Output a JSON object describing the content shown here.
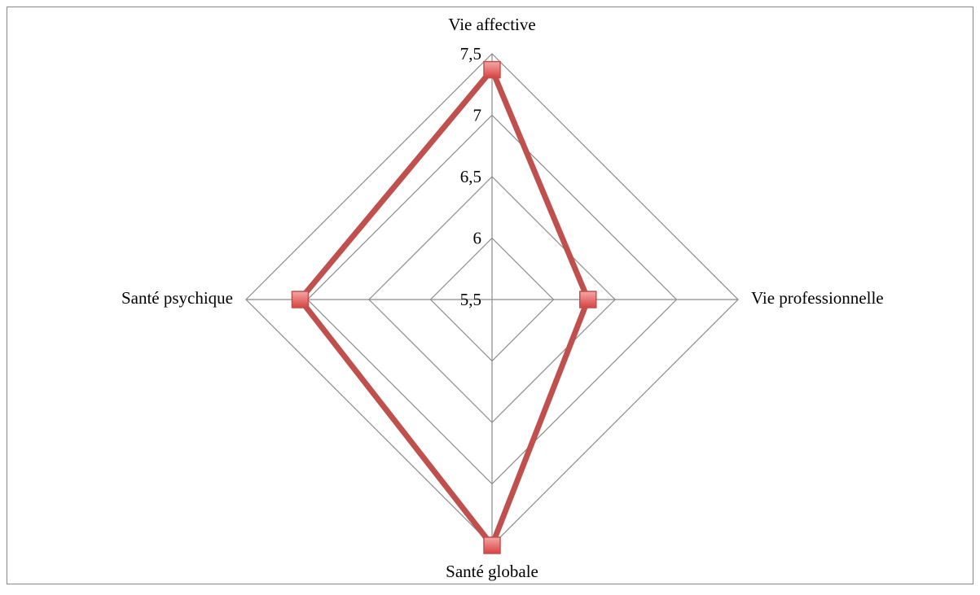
{
  "chart_data": {
    "type": "radar",
    "categories": [
      "Vie affective",
      "Vie professionnelle",
      "Santé globale",
      "Santé psychique"
    ],
    "series": [
      {
        "color": "#c0504d",
        "values": [
          7.37,
          6.28,
          7.5,
          7.06
        ]
      }
    ],
    "ylim": [
      5.5,
      7.5
    ],
    "yticks": [
      {
        "value": 5.5,
        "label": "5,5"
      },
      6,
      {
        "value": 6.5,
        "label": "6,5"
      },
      7,
      {
        "value": 7.5,
        "label": "7,5"
      }
    ],
    "grid": true
  }
}
